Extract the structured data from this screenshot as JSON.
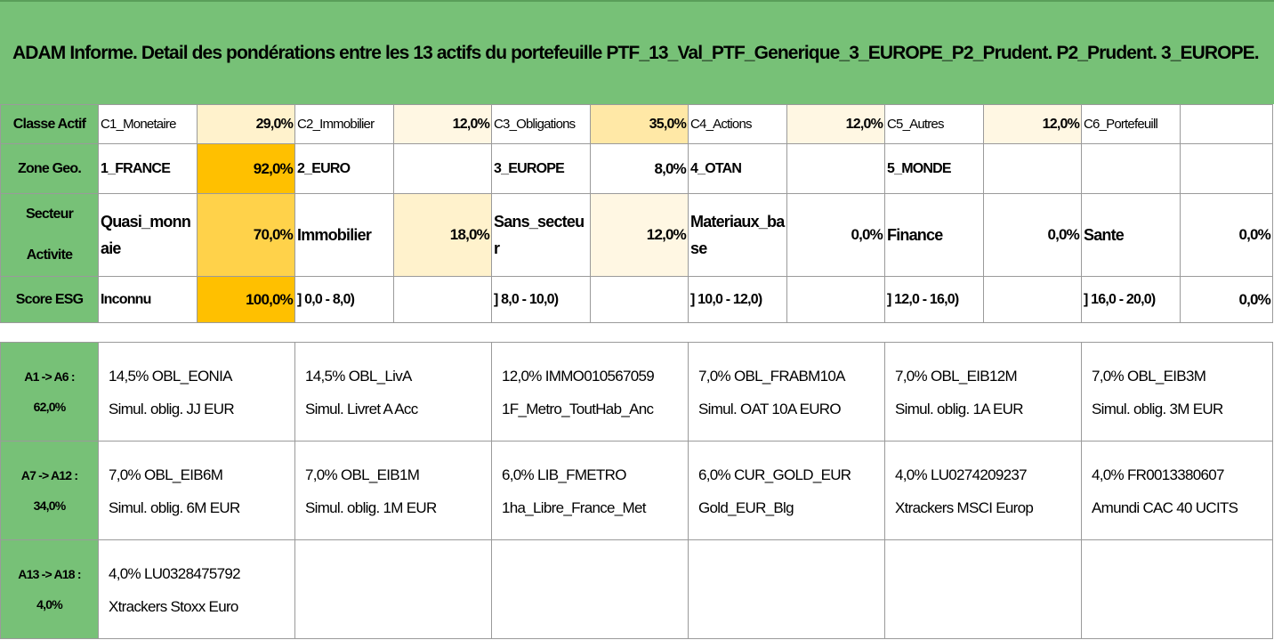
{
  "title": "ADAM Informe. Detail des pondérations entre les 13 actifs du portefeuille PTF_13_Val_PTF_Generique_3_EUROPE_P2_Prudent. P2_Prudent. 3_EUROPE.",
  "colors": {
    "header_green": "#77c177",
    "shade_light": "#fff2cc",
    "shade_mid": "#ffe699",
    "shade_strong": "#ffc000"
  },
  "rows": [
    {
      "header": "Classe Actif",
      "cells": [
        {
          "name": "C1_Monetaire",
          "value": "29,0%",
          "shade": "#fff2cc"
        },
        {
          "name": "C2_Immobilier",
          "value": "12,0%",
          "shade": "#fff7e3"
        },
        {
          "name": "C3_Obligations",
          "value": "35,0%",
          "shade": "#ffe8a6"
        },
        {
          "name": "C4_Actions",
          "value": "12,0%",
          "shade": "#fff7e3"
        },
        {
          "name": "C5_Autres",
          "value": "12,0%",
          "shade": "#fff7e3"
        },
        {
          "name": "C6_Portefeuill",
          "value": "",
          "shade": ""
        }
      ]
    },
    {
      "header": "Zone Geo.",
      "cells": [
        {
          "name": "1_FRANCE",
          "value": "92,0%",
          "shade": "#ffc000"
        },
        {
          "name": "2_EURO",
          "value": "",
          "shade": ""
        },
        {
          "name": "3_EUROPE",
          "value": "8,0%",
          "shade": ""
        },
        {
          "name": "4_OTAN",
          "value": "",
          "shade": ""
        },
        {
          "name": "5_MONDE",
          "value": "",
          "shade": ""
        },
        {
          "name": "",
          "value": "",
          "shade": ""
        }
      ]
    },
    {
      "header": "Secteur Activite",
      "cells": [
        {
          "name": "Quasi_monnaie",
          "value": "70,0%",
          "shade": "#ffd24a"
        },
        {
          "name": "Immobilier",
          "value": "18,0%",
          "shade": "#fff2cc"
        },
        {
          "name": "Sans_secteur",
          "value": "12,0%",
          "shade": "#fff7e3"
        },
        {
          "name": "Materiaux_base",
          "value": "0,0%",
          "shade": ""
        },
        {
          "name": "Finance",
          "value": "0,0%",
          "shade": ""
        },
        {
          "name": "Sante",
          "value": "0,0%",
          "shade": ""
        }
      ]
    },
    {
      "header": "Score ESG",
      "cells": [
        {
          "name": "Inconnu",
          "value": "100,0%",
          "shade": "#ffc000"
        },
        {
          "name": "] 0,0 - 8,0)",
          "value": "",
          "shade": ""
        },
        {
          "name": "] 8,0 - 10,0)",
          "value": "",
          "shade": ""
        },
        {
          "name": "] 10,0 - 12,0)",
          "value": "",
          "shade": ""
        },
        {
          "name": "] 12,0 - 16,0)",
          "value": "",
          "shade": ""
        },
        {
          "name": "] 16,0 - 20,0)",
          "value": "0,0%",
          "shade": ""
        }
      ]
    }
  ],
  "asset_rows": [
    {
      "range": "A1 -> A6 :",
      "total": "62,0%",
      "assets": [
        {
          "line1": "14,5% OBL_EONIA",
          "line2": "Simul. oblig. JJ EUR"
        },
        {
          "line1": "14,5% OBL_LivA",
          "line2": "Simul. Livret A Acc"
        },
        {
          "line1": "12,0% IMMO010567059",
          "line2": "1F_Metro_ToutHab_Anc"
        },
        {
          "line1": "7,0% OBL_FRABM10A",
          "line2": "Simul. OAT 10A EURO"
        },
        {
          "line1": "7,0% OBL_EIB12M",
          "line2": "Simul. oblig. 1A EUR"
        },
        {
          "line1": "7,0% OBL_EIB3M",
          "line2": "Simul. oblig. 3M EUR"
        }
      ]
    },
    {
      "range": "A7 -> A12 :",
      "total": "34,0%",
      "assets": [
        {
          "line1": "7,0% OBL_EIB6M",
          "line2": "Simul. oblig. 6M EUR"
        },
        {
          "line1": "7,0% OBL_EIB1M",
          "line2": "Simul. oblig. 1M EUR"
        },
        {
          "line1": "6,0% LIB_FMETRO",
          "line2": "1ha_Libre_France_Met"
        },
        {
          "line1": "6,0% CUR_GOLD_EUR",
          "line2": "Gold_EUR_Blg"
        },
        {
          "line1": "4,0% LU0274209237",
          "line2": "Xtrackers MSCI Europ"
        },
        {
          "line1": "4,0% FR0013380607",
          "line2": "Amundi CAC 40 UCITS"
        }
      ]
    },
    {
      "range": "A13 -> A18 :",
      "total": "4,0%",
      "assets": [
        {
          "line1": "4,0% LU0328475792",
          "line2": "Xtrackers Stoxx Euro"
        },
        {
          "line1": "",
          "line2": ""
        },
        {
          "line1": "",
          "line2": ""
        },
        {
          "line1": "",
          "line2": ""
        },
        {
          "line1": "",
          "line2": ""
        },
        {
          "line1": "",
          "line2": ""
        }
      ]
    }
  ]
}
